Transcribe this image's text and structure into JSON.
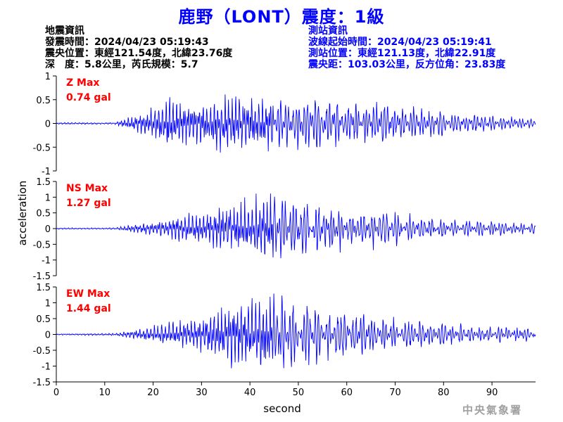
{
  "page": {
    "title": "鹿野（LONT）震度：1級",
    "quake_info": {
      "heading": "地震資訊",
      "origin_time": "發震時間：2024/04/23 05:19:43",
      "epicenter": "震央位置：東經121.54度，北緯23.76度",
      "depth_magnitude": "深　度：5.8公里，芮氏規模：5.7"
    },
    "station_info": {
      "heading": "測站資訊",
      "wave_start": "波線起始時間：2024/04/23 05:19:41",
      "station_location": "測站位置：東經121.13度，北緯22.91度",
      "distance_azimuth": "震央距：103.03公里，反方位角：23.83度"
    },
    "credit": "中央氣象署"
  },
  "chart_data": [
    {
      "type": "line",
      "panel_label": "Z Max",
      "max_label": "0.74 gal",
      "ylim": [
        -1,
        1
      ],
      "yticks": [
        1,
        0.5,
        0,
        -0.5,
        -1
      ],
      "ytick_labels": [
        "1",
        "0.5",
        "0",
        "-0.5",
        "-1"
      ],
      "xlim": [
        0,
        99
      ],
      "peak": 0.74,
      "onset_s": 13,
      "envelope": [
        [
          0,
          0.02
        ],
        [
          12,
          0.02
        ],
        [
          14,
          0.1
        ],
        [
          17,
          0.18
        ],
        [
          20,
          0.35
        ],
        [
          23,
          0.62
        ],
        [
          26,
          0.5
        ],
        [
          29,
          0.45
        ],
        [
          33,
          0.55
        ],
        [
          38,
          0.6
        ],
        [
          42,
          0.58
        ],
        [
          47,
          0.5
        ],
        [
          51,
          0.6
        ],
        [
          55,
          0.52
        ],
        [
          60,
          0.4
        ],
        [
          65,
          0.42
        ],
        [
          70,
          0.4
        ],
        [
          75,
          0.3
        ],
        [
          82,
          0.22
        ],
        [
          90,
          0.15
        ],
        [
          99,
          0.1
        ]
      ],
      "color": "#0000ff"
    },
    {
      "type": "line",
      "panel_label": "NS Max",
      "max_label": "1.27 gal",
      "ylim": [
        -1.5,
        1.5
      ],
      "yticks": [
        1.5,
        1,
        0.5,
        0,
        -0.5,
        -1,
        -1.5
      ],
      "ytick_labels": [
        "1.5",
        "1",
        "0.5",
        "0",
        "-0.5",
        "-1",
        "-1.5"
      ],
      "xlim": [
        0,
        99
      ],
      "peak": 1.27,
      "onset_s": 13,
      "envelope": [
        [
          0,
          0.02
        ],
        [
          12,
          0.03
        ],
        [
          15,
          0.1
        ],
        [
          20,
          0.2
        ],
        [
          25,
          0.35
        ],
        [
          30,
          0.55
        ],
        [
          35,
          0.7
        ],
        [
          40,
          0.9
        ],
        [
          44,
          1.1
        ],
        [
          48,
          0.9
        ],
        [
          52,
          0.85
        ],
        [
          57,
          0.7
        ],
        [
          62,
          0.55
        ],
        [
          68,
          0.6
        ],
        [
          73,
          0.45
        ],
        [
          80,
          0.3
        ],
        [
          87,
          0.25
        ],
        [
          93,
          0.2
        ],
        [
          99,
          0.15
        ]
      ],
      "color": "#0000ff"
    },
    {
      "type": "line",
      "panel_label": "EW Max",
      "max_label": "1.44 gal",
      "ylim": [
        -1.5,
        1.5
      ],
      "yticks": [
        1.5,
        1,
        0.5,
        0,
        -0.5,
        -1,
        -1.5
      ],
      "ytick_labels": [
        "1.5",
        "1",
        "0.5",
        "0",
        "-0.5",
        "-1",
        "-1.5"
      ],
      "xlim": [
        0,
        99
      ],
      "peak": 1.44,
      "onset_s": 13,
      "envelope": [
        [
          0,
          0.02
        ],
        [
          12,
          0.04
        ],
        [
          15,
          0.12
        ],
        [
          20,
          0.25
        ],
        [
          25,
          0.4
        ],
        [
          30,
          0.55
        ],
        [
          34,
          0.85
        ],
        [
          38,
          1.0
        ],
        [
          42,
          1.05
        ],
        [
          46,
          1.25
        ],
        [
          50,
          1.0
        ],
        [
          55,
          0.8
        ],
        [
          60,
          0.65
        ],
        [
          66,
          0.55
        ],
        [
          72,
          0.45
        ],
        [
          80,
          0.35
        ],
        [
          88,
          0.28
        ],
        [
          99,
          0.2
        ]
      ],
      "color": "#0000ff"
    }
  ],
  "axes": {
    "xlabel": "second",
    "ylabel": "acceleration",
    "xticks": [
      0,
      10,
      20,
      30,
      40,
      50,
      60,
      70,
      80,
      90
    ],
    "xtick_labels": [
      "0",
      "10",
      "20",
      "30",
      "40",
      "50",
      "60",
      "70",
      "80",
      "90"
    ],
    "xlim": [
      0,
      99
    ]
  },
  "colors": {
    "trace": "#0000ff",
    "panel_label": "#ff0000",
    "title": "#0000ff",
    "station_info": "#0000ff",
    "quake_info": "#000000",
    "credit": "#a0a0a0"
  }
}
